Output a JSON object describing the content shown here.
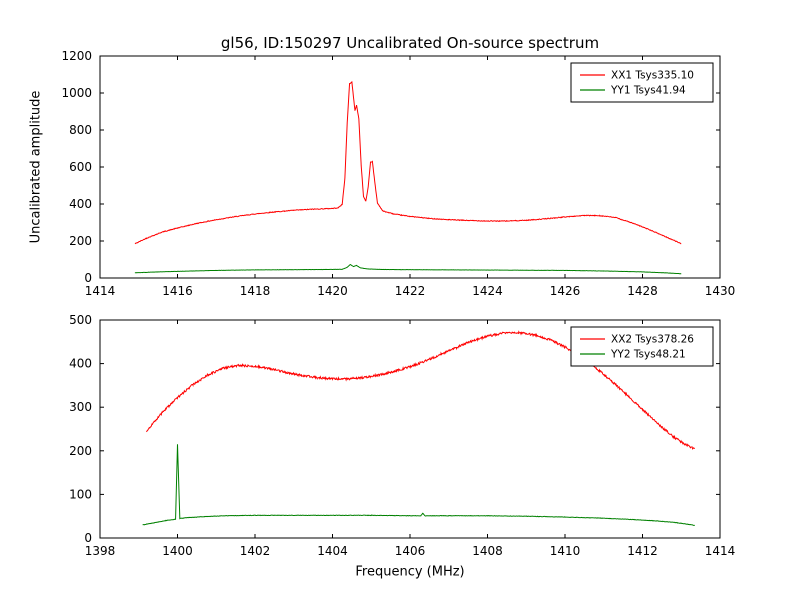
{
  "figure": {
    "title": "gl56, ID:150297 Uncalibrated On-source spectrum",
    "xlabel": "Frequency (MHz)",
    "ylabel": "Uncalibrated amplitude"
  },
  "colors": {
    "xx": "#ff0000",
    "yy": "#008000",
    "axes": "#000000",
    "background": "#ffffff"
  },
  "chart_data": [
    {
      "type": "line",
      "title": "gl56, ID:150297 Uncalibrated On-source spectrum",
      "xlabel": "",
      "ylabel": "Uncalibrated amplitude",
      "xlim": [
        1414,
        1430
      ],
      "ylim": [
        0,
        1200
      ],
      "xticks": [
        1414,
        1416,
        1418,
        1420,
        1422,
        1424,
        1426,
        1428,
        1430
      ],
      "yticks": [
        0,
        200,
        400,
        600,
        800,
        1000,
        1200
      ],
      "grid": false,
      "legend_position": "upper right",
      "series": [
        {
          "name": "XX1 Tsys335.10",
          "color": "#ff0000",
          "noise": 2,
          "points": [
            [
              1414.9,
              185
            ],
            [
              1415.2,
              215
            ],
            [
              1415.6,
              248
            ],
            [
              1416.0,
              270
            ],
            [
              1416.5,
              295
            ],
            [
              1417.0,
              315
            ],
            [
              1417.5,
              332
            ],
            [
              1418.0,
              346
            ],
            [
              1418.5,
              357
            ],
            [
              1419.0,
              366
            ],
            [
              1419.5,
              372
            ],
            [
              1420.0,
              376
            ],
            [
              1420.15,
              380
            ],
            [
              1420.25,
              398
            ],
            [
              1420.32,
              540
            ],
            [
              1420.38,
              840
            ],
            [
              1420.44,
              1050
            ],
            [
              1420.5,
              1060
            ],
            [
              1420.54,
              980
            ],
            [
              1420.58,
              905
            ],
            [
              1420.62,
              935
            ],
            [
              1420.68,
              860
            ],
            [
              1420.74,
              610
            ],
            [
              1420.8,
              440
            ],
            [
              1420.86,
              415
            ],
            [
              1420.92,
              490
            ],
            [
              1420.98,
              625
            ],
            [
              1421.03,
              630
            ],
            [
              1421.09,
              520
            ],
            [
              1421.16,
              405
            ],
            [
              1421.3,
              362
            ],
            [
              1421.6,
              345
            ],
            [
              1422.0,
              333
            ],
            [
              1422.5,
              322
            ],
            [
              1423.0,
              315
            ],
            [
              1423.5,
              311
            ],
            [
              1424.0,
              308
            ],
            [
              1424.5,
              308
            ],
            [
              1425.0,
              312
            ],
            [
              1425.5,
              320
            ],
            [
              1426.0,
              330
            ],
            [
              1426.5,
              338
            ],
            [
              1426.9,
              337
            ],
            [
              1427.3,
              327
            ],
            [
              1427.7,
              300
            ],
            [
              1428.1,
              268
            ],
            [
              1428.5,
              232
            ],
            [
              1429.0,
              186
            ]
          ]
        },
        {
          "name": "YY1 Tsys41.94",
          "color": "#008000",
          "noise": 0.5,
          "points": [
            [
              1414.9,
              28
            ],
            [
              1415.5,
              33
            ],
            [
              1416.2,
              37
            ],
            [
              1417.0,
              41
            ],
            [
              1418.0,
              44
            ],
            [
              1419.0,
              45
            ],
            [
              1419.8,
              46
            ],
            [
              1420.25,
              47
            ],
            [
              1420.38,
              58
            ],
            [
              1420.46,
              73
            ],
            [
              1420.54,
              62
            ],
            [
              1420.62,
              68
            ],
            [
              1420.72,
              55
            ],
            [
              1420.9,
              49
            ],
            [
              1421.3,
              46
            ],
            [
              1422.0,
              45
            ],
            [
              1423.0,
              44
            ],
            [
              1424.0,
              43
            ],
            [
              1425.0,
              42
            ],
            [
              1426.0,
              41
            ],
            [
              1427.0,
              38
            ],
            [
              1428.0,
              33
            ],
            [
              1428.6,
              28
            ],
            [
              1429.0,
              23
            ]
          ]
        }
      ]
    },
    {
      "type": "line",
      "title": "",
      "xlabel": "Frequency (MHz)",
      "ylabel": "",
      "xlim": [
        1398,
        1414
      ],
      "ylim": [
        0,
        500
      ],
      "xticks": [
        1398,
        1400,
        1402,
        1404,
        1406,
        1408,
        1410,
        1412,
        1414
      ],
      "yticks": [
        0,
        100,
        200,
        300,
        400,
        500
      ],
      "grid": false,
      "legend_position": "upper right",
      "series": [
        {
          "name": "XX2 Tsys378.26",
          "color": "#ff0000",
          "noise": 2.5,
          "points": [
            [
              1399.2,
              245
            ],
            [
              1399.6,
              287
            ],
            [
              1400.0,
              322
            ],
            [
              1400.4,
              352
            ],
            [
              1400.8,
              375
            ],
            [
              1401.2,
              390
            ],
            [
              1401.6,
              396
            ],
            [
              1402.0,
              394
            ],
            [
              1402.4,
              388
            ],
            [
              1402.8,
              380
            ],
            [
              1403.2,
              373
            ],
            [
              1403.6,
              368
            ],
            [
              1404.0,
              365
            ],
            [
              1404.4,
              365
            ],
            [
              1404.8,
              368
            ],
            [
              1405.2,
              374
            ],
            [
              1405.6,
              382
            ],
            [
              1406.0,
              393
            ],
            [
              1406.4,
              406
            ],
            [
              1406.8,
              421
            ],
            [
              1407.2,
              437
            ],
            [
              1407.6,
              452
            ],
            [
              1408.0,
              463
            ],
            [
              1408.4,
              470
            ],
            [
              1408.8,
              471
            ],
            [
              1409.2,
              466
            ],
            [
              1409.6,
              455
            ],
            [
              1410.0,
              438
            ],
            [
              1410.4,
              416
            ],
            [
              1410.8,
              390
            ],
            [
              1411.2,
              360
            ],
            [
              1411.6,
              328
            ],
            [
              1412.0,
              295
            ],
            [
              1412.4,
              262
            ],
            [
              1412.8,
              232
            ],
            [
              1413.1,
              215
            ],
            [
              1413.35,
              204
            ]
          ]
        },
        {
          "name": "YY2 Tsys48.21",
          "color": "#008000",
          "noise": 0.5,
          "points": [
            [
              1399.1,
              30
            ],
            [
              1399.4,
              35
            ],
            [
              1399.7,
              40
            ],
            [
              1399.95,
              43
            ],
            [
              1400.0,
              215
            ],
            [
              1400.06,
              45
            ],
            [
              1400.3,
              47
            ],
            [
              1400.7,
              49
            ],
            [
              1401.2,
              51
            ],
            [
              1402.0,
              52
            ],
            [
              1403.0,
              52
            ],
            [
              1404.0,
              52
            ],
            [
              1405.0,
              52
            ],
            [
              1406.0,
              51
            ],
            [
              1406.28,
              51
            ],
            [
              1406.33,
              57
            ],
            [
              1406.38,
              51
            ],
            [
              1407.0,
              51
            ],
            [
              1408.0,
              51
            ],
            [
              1409.0,
              50
            ],
            [
              1410.0,
              48
            ],
            [
              1410.8,
              46
            ],
            [
              1411.6,
              43
            ],
            [
              1412.4,
              39
            ],
            [
              1412.9,
              35
            ],
            [
              1413.35,
              29
            ]
          ]
        }
      ]
    }
  ]
}
